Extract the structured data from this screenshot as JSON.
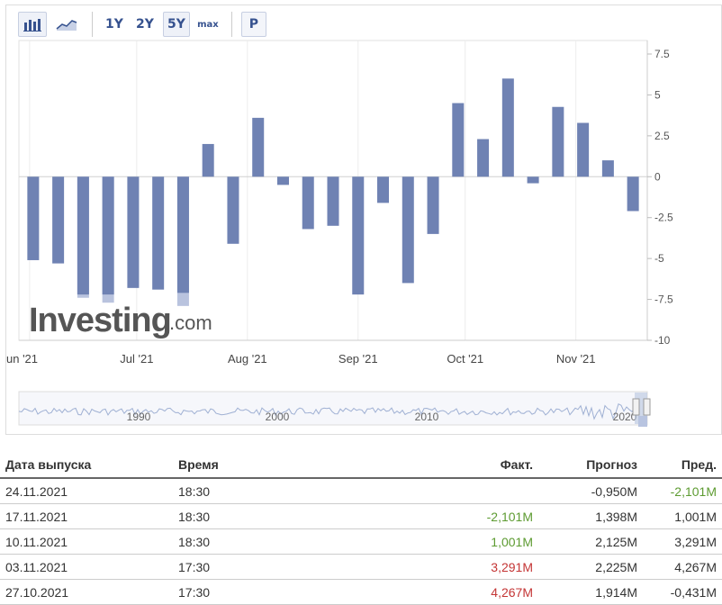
{
  "toolbar": {
    "buttons": [
      {
        "label": "1Y"
      },
      {
        "label": "2Y"
      },
      {
        "label": "5Y",
        "active": true
      },
      {
        "label": "max"
      }
    ],
    "p_label": "P",
    "icons": [
      "bar-chart-icon",
      "line-chart-icon"
    ]
  },
  "watermark": {
    "brand": "Investing",
    "suffix": ".com"
  },
  "chart_data": {
    "type": "bar",
    "color": "#6f82b3",
    "forecast_color": "#b9c3de",
    "ylim": [
      -10,
      7.5
    ],
    "yticks": [
      "7.5",
      "5",
      "2.5",
      "0",
      "-2.5",
      "-5",
      "-7.5",
      "-10"
    ],
    "ytick_values": [
      7.5,
      5,
      2.5,
      0,
      -2.5,
      -5,
      -7.5,
      -10
    ],
    "xticks": [
      {
        "label": "un '21",
        "date": "2021-06-01"
      },
      {
        "label": "Jul '21",
        "date": "2021-07-01"
      },
      {
        "label": "Aug '21",
        "date": "2021-08-01"
      },
      {
        "label": "Sep '21",
        "date": "2021-09-01"
      },
      {
        "label": "Oct '21",
        "date": "2021-10-01"
      },
      {
        "label": "Nov '21",
        "date": "2021-11-01"
      }
    ],
    "bars": [
      {
        "date": "2021-06-02",
        "value": -5.1
      },
      {
        "date": "2021-06-09",
        "value": -5.3
      },
      {
        "date": "2021-06-16",
        "value": -7.2,
        "forecast": -7.4
      },
      {
        "date": "2021-06-23",
        "value": -7.2,
        "forecast": -7.7
      },
      {
        "date": "2021-06-30",
        "value": -6.8
      },
      {
        "date": "2021-07-07",
        "value": -6.9
      },
      {
        "date": "2021-07-14",
        "value": -7.1,
        "forecast": -7.9
      },
      {
        "date": "2021-07-21",
        "value": 2.0
      },
      {
        "date": "2021-07-28",
        "value": -4.1
      },
      {
        "date": "2021-08-04",
        "value": 3.6
      },
      {
        "date": "2021-08-11",
        "value": -0.5
      },
      {
        "date": "2021-08-18",
        "value": -3.2
      },
      {
        "date": "2021-08-25",
        "value": -3.0
      },
      {
        "date": "2021-09-01",
        "value": -7.2
      },
      {
        "date": "2021-09-08",
        "value": -1.6
      },
      {
        "date": "2021-09-15",
        "value": -6.5
      },
      {
        "date": "2021-09-22",
        "value": -3.5
      },
      {
        "date": "2021-09-29",
        "value": 4.5
      },
      {
        "date": "2021-10-06",
        "value": 2.3
      },
      {
        "date": "2021-10-13",
        "value": 6.0
      },
      {
        "date": "2021-10-20",
        "value": -0.4
      },
      {
        "date": "2021-10-27",
        "value": 4.267
      },
      {
        "date": "2021-11-03",
        "value": 3.291
      },
      {
        "date": "2021-11-10",
        "value": 1.001
      },
      {
        "date": "2021-11-17",
        "value": -2.101
      }
    ],
    "navigator": {
      "labels": [
        "1990",
        "2000",
        "2010",
        "2020"
      ]
    }
  },
  "table": {
    "headers": {
      "date": "Дата выпуска",
      "time": "Время",
      "actual": "Факт.",
      "forecast": "Прогноз",
      "previous": "Пред."
    },
    "rows": [
      {
        "date": "24.11.2021",
        "time": "18:30",
        "actual": "",
        "actual_color": "",
        "forecast": "-0,950M",
        "previous": "-2,101M",
        "previous_color": "green"
      },
      {
        "date": "17.11.2021",
        "time": "18:30",
        "actual": "-2,101M",
        "actual_color": "green",
        "forecast": "1,398M",
        "previous": "1,001M",
        "previous_color": ""
      },
      {
        "date": "10.11.2021",
        "time": "18:30",
        "actual": "1,001M",
        "actual_color": "green",
        "forecast": "2,125M",
        "previous": "3,291M",
        "previous_color": ""
      },
      {
        "date": "03.11.2021",
        "time": "17:30",
        "actual": "3,291M",
        "actual_color": "red",
        "forecast": "2,225M",
        "previous": "4,267M",
        "previous_color": ""
      },
      {
        "date": "27.10.2021",
        "time": "17:30",
        "actual": "4,267M",
        "actual_color": "red",
        "forecast": "1,914M",
        "previous": "-0,431M",
        "previous_color": ""
      }
    ]
  }
}
